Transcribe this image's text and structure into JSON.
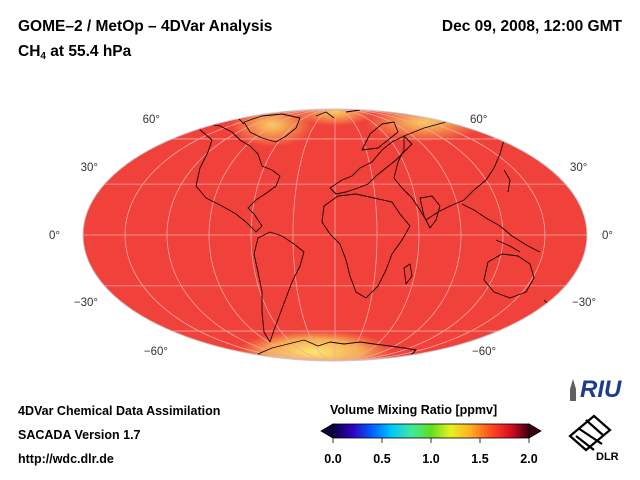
{
  "header": {
    "title": "GOME–2 / MetOp – 4DVar Analysis",
    "species": "CH",
    "species_sub": "4",
    "level": " at 55.4 hPa",
    "datetime": "Dec 09, 2008, 12:00 GMT"
  },
  "map": {
    "projection": "mollweide",
    "lat_labels_left": [
      "60°",
      "30°",
      "0°",
      "−30°",
      "−60°"
    ],
    "lat_labels_right": [
      "60°",
      "30°",
      "0°",
      "−30°",
      "−60°"
    ],
    "background_color": "#f0413a",
    "high_color": "#f8e060",
    "graticule_color": "#f4a8a4"
  },
  "colorbar": {
    "title": "Volume Mixing Ratio [ppmv]",
    "ticks": [
      "0.0",
      "0.5",
      "1.0",
      "1.5",
      "2.0"
    ],
    "colors": [
      "#0a0040",
      "#3000c0",
      "#0060ff",
      "#00c8ff",
      "#40e8a0",
      "#60e020",
      "#e8f020",
      "#ffb020",
      "#ff5020",
      "#e01020",
      "#400010"
    ]
  },
  "footer": {
    "line1": "4DVar Chemical Data Assimilation",
    "line2": "SACADA Version 1.7",
    "line3": "http://wdc.dlr.de"
  },
  "logos": {
    "riu": "RIU",
    "dlr": "DLR"
  }
}
